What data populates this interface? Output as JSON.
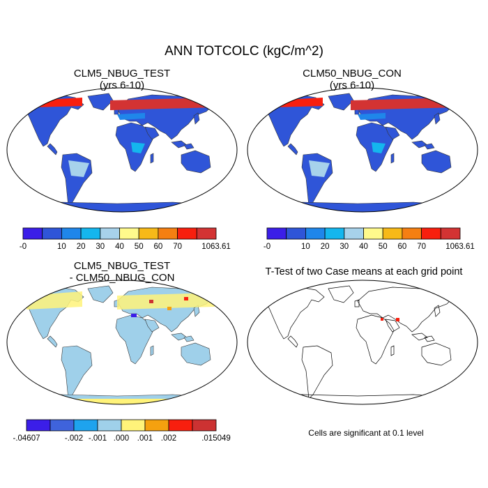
{
  "title": "ANN TOTCOLC (kgC/m^2)",
  "panels": [
    {
      "title_line1": "CLM5_NBUG_TEST",
      "title_line2": "(yrs 6-10)"
    },
    {
      "title_line1": "CLM50_NBUG_CON",
      "title_line2": "(yrs 6-10)"
    },
    {
      "title_line1": "CLM5_NBUG_TEST",
      "title_line2": "- CLM50_NBUG_CON"
    },
    {
      "title_line1": "T-Test of two Case means at each grid point",
      "title_line2": ""
    }
  ],
  "significance_note": "Cells are significant at 0.1 level",
  "colorbars": {
    "value": {
      "colors": [
        "#3b1ee8",
        "#2f55d8",
        "#1f86ea",
        "#14b6ee",
        "#a7d2eb",
        "#fffa8c",
        "#f7b918",
        "#f57f12",
        "#f81f0e",
        "#d33333"
      ],
      "labels": [
        "-0",
        "10",
        "20",
        "30",
        "40",
        "50",
        "60",
        "70",
        "1063.61"
      ],
      "label_boundaries": [
        0,
        2,
        3,
        4,
        5,
        6,
        7,
        8,
        10
      ]
    },
    "difference": {
      "colors": [
        "#3b1ee8",
        "#3f63dc",
        "#1ea3ee",
        "#9fd0ea",
        "#fff37a",
        "#f5a10f",
        "#f81f0e",
        "#cc3232"
      ],
      "labels": [
        "-.04607",
        "-.002",
        "-.001",
        ".000",
        ".001",
        ".002",
        ".015049"
      ],
      "label_boundaries": [
        0,
        2,
        3,
        4,
        5,
        6,
        8
      ]
    }
  }
}
